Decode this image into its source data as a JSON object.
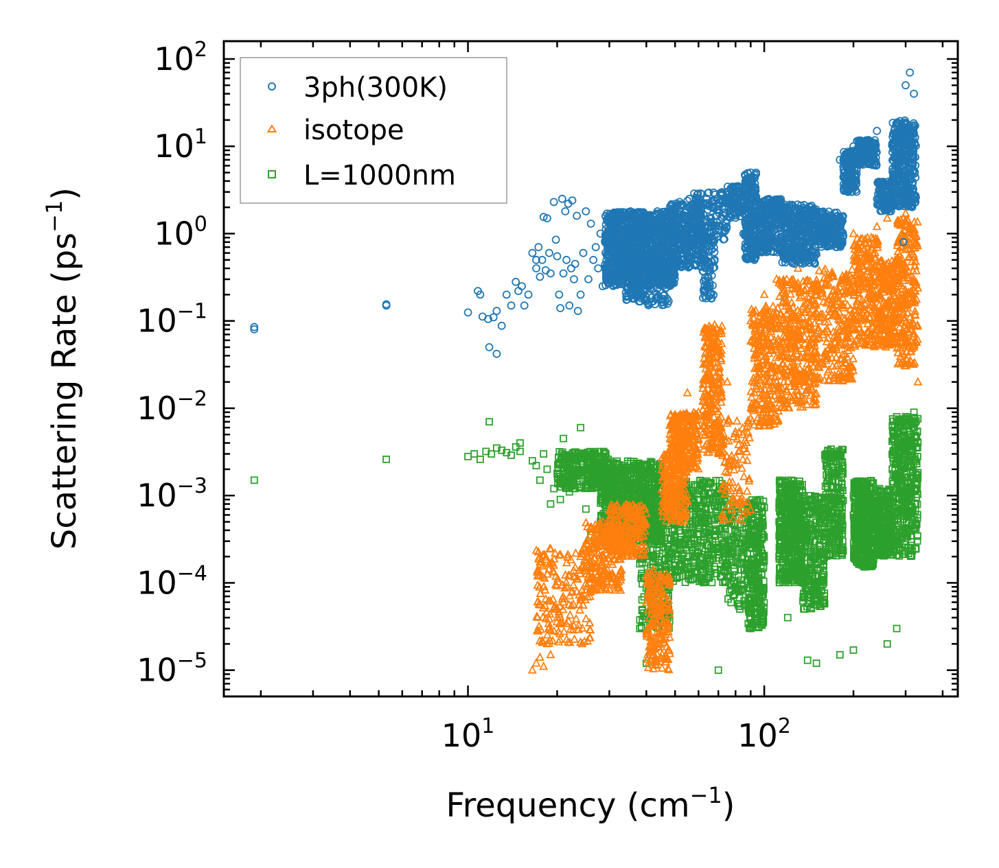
{
  "chart_data": {
    "type": "scatter",
    "xscale": "log",
    "yscale": "log",
    "xlim": [
      1.5,
      450
    ],
    "ylim": [
      5e-06,
      160
    ],
    "xlabel": {
      "base": "Frequency (cm",
      "sup": "−1",
      "close": ")"
    },
    "ylabel": {
      "base": "Scattering Rate (ps",
      "sup": "−1",
      "close": ")"
    },
    "x_ticks": [
      {
        "value": 10,
        "base": "10",
        "exp": "1"
      },
      {
        "value": 100,
        "base": "10",
        "exp": "2"
      }
    ],
    "y_ticks": [
      {
        "value": 100,
        "base": "10",
        "exp": "2"
      },
      {
        "value": 10,
        "base": "10",
        "exp": "1"
      },
      {
        "value": 1,
        "base": "10",
        "exp": "0"
      },
      {
        "value": 0.1,
        "base": "10",
        "exp": "−1"
      },
      {
        "value": 0.01,
        "base": "10",
        "exp": "−2"
      },
      {
        "value": 0.001,
        "base": "10",
        "exp": "−3"
      },
      {
        "value": 0.0001,
        "base": "10",
        "exp": "−4"
      },
      {
        "value": 1e-05,
        "base": "10",
        "exp": "−5"
      }
    ],
    "legend_position": "top-left",
    "series": [
      {
        "name": "3ph(300K)",
        "marker": "circle",
        "color": "#1f77b4",
        "points": [
          [
            1.9,
            0.085
          ],
          [
            1.9,
            0.08
          ],
          [
            5.3,
            0.155
          ],
          [
            5.3,
            0.15
          ],
          [
            10.0,
            0.125
          ],
          [
            10.8,
            0.22
          ],
          [
            11.0,
            0.2
          ],
          [
            11.2,
            0.112
          ],
          [
            11.7,
            0.105
          ],
          [
            11.8,
            0.05
          ],
          [
            12.2,
            0.11
          ],
          [
            12.5,
            0.13
          ],
          [
            12.5,
            0.042
          ],
          [
            13.0,
            0.088
          ],
          [
            13.5,
            0.2
          ],
          [
            14.0,
            0.15
          ],
          [
            14.5,
            0.28
          ],
          [
            14.8,
            0.22
          ],
          [
            15.2,
            0.25
          ],
          [
            15.5,
            0.15
          ],
          [
            16.0,
            0.2
          ],
          [
            16.5,
            0.6
          ],
          [
            17.0,
            0.5
          ],
          [
            17.0,
            0.4
          ],
          [
            17.3,
            0.7
          ],
          [
            17.5,
            0.32
          ],
          [
            17.8,
            0.5
          ],
          [
            18.0,
            1.55
          ],
          [
            18.3,
            0.38
          ],
          [
            18.5,
            1.5
          ],
          [
            18.8,
            0.6
          ],
          [
            19.0,
            0.35
          ],
          [
            19.5,
            2.3
          ],
          [
            19.8,
            0.85
          ],
          [
            20.0,
            0.55
          ],
          [
            20.3,
            0.2
          ],
          [
            20.5,
            0.14
          ],
          [
            20.8,
            2.5
          ],
          [
            21.0,
            0.35
          ],
          [
            21.3,
            1.8
          ],
          [
            21.5,
            0.5
          ],
          [
            21.8,
            2.2
          ],
          [
            22.0,
            0.15
          ],
          [
            22.3,
            0.4
          ],
          [
            22.5,
            2.4
          ],
          [
            22.8,
            0.3
          ],
          [
            23.0,
            0.45
          ],
          [
            23.3,
            1.6
          ],
          [
            23.5,
            0.13
          ],
          [
            24.0,
            0.2
          ],
          [
            24.5,
            0.6
          ],
          [
            25.0,
            1.8
          ],
          [
            25.5,
            0.3
          ],
          [
            26.0,
            1.3
          ],
          [
            26.5,
            0.5
          ],
          [
            27.0,
            0.7
          ],
          [
            27.5,
            0.4
          ],
          [
            28.0,
            1.0
          ],
          [
            28.5,
            0.25
          ],
          [
            29.0,
            0.8
          ],
          [
            85,
            1.0
          ],
          [
            90,
            5.0
          ],
          [
            92,
            3.5
          ],
          [
            120,
            0.6
          ],
          [
            130,
            1.2
          ],
          [
            180,
            7.0
          ],
          [
            200,
            10.0
          ],
          [
            240,
            15.0
          ],
          [
            280,
            18.0
          ],
          [
            300,
            50.0
          ],
          [
            310,
            70.0
          ],
          [
            320,
            40.0
          ],
          [
            295,
            0.8
          ]
        ],
        "clusters": [
          {
            "x": [
              29,
              50
            ],
            "y": [
              0.25,
              1.8
            ],
            "count": 1300
          },
          {
            "x": [
              34,
              48
            ],
            "y": [
              0.15,
              0.5
            ],
            "count": 150
          },
          {
            "x": [
              48,
              62
            ],
            "y": [
              0.4,
              2.3
            ],
            "count": 300
          },
          {
            "x": [
              55,
              75
            ],
            "y": [
              0.8,
              3.0
            ],
            "count": 150
          },
          {
            "x": [
              62,
              68
            ],
            "y": [
              0.18,
              1.0
            ],
            "count": 80
          },
          {
            "x": [
              75,
              86
            ],
            "y": [
              1.5,
              3.5
            ],
            "count": 100
          },
          {
            "x": [
              86,
              94
            ],
            "y": [
              0.5,
              5.0
            ],
            "count": 200
          },
          {
            "x": [
              94,
              115
            ],
            "y": [
              0.6,
              2.5
            ],
            "count": 250
          },
          {
            "x": [
              115,
              150
            ],
            "y": [
              0.45,
              2.2
            ],
            "count": 350
          },
          {
            "x": [
              150,
              185
            ],
            "y": [
              0.7,
              1.8
            ],
            "count": 200
          },
          {
            "x": [
              185,
              205
            ],
            "y": [
              3.0,
              9.0
            ],
            "count": 150
          },
          {
            "x": [
              205,
              240
            ],
            "y": [
              6.0,
              12.0
            ],
            "count": 150
          },
          {
            "x": [
              240,
              270
            ],
            "y": [
              1.8,
              4.0
            ],
            "count": 100
          },
          {
            "x": [
              270,
              325
            ],
            "y": [
              2.0,
              20.0
            ],
            "count": 350
          }
        ]
      },
      {
        "name": "isotope",
        "marker": "triangle",
        "color": "#ff7f0e",
        "points": [
          [
            16.5,
            1e-05
          ],
          [
            17.0,
            1.2e-05
          ],
          [
            17.5,
            1.4e-05
          ],
          [
            18.0,
            1.1e-05
          ],
          [
            18.5,
            2e-05
          ],
          [
            19.0,
            1.5e-05
          ],
          [
            19.5,
            2.8e-05
          ],
          [
            20.0,
            4e-05
          ],
          [
            20.5,
            3.5e-05
          ],
          [
            21.0,
            6e-05
          ],
          [
            21.5,
            9e-05
          ],
          [
            22.0,
            0.00012
          ],
          [
            22.5,
            8e-05
          ],
          [
            23.0,
            0.00015
          ],
          [
            23.5,
            0.00011
          ],
          [
            24.0,
            0.0002
          ],
          [
            24.5,
            0.00025
          ],
          [
            25.0,
            0.00018
          ],
          [
            55,
            0.015
          ],
          [
            60,
            0.009
          ],
          [
            65,
            0.05
          ],
          [
            68,
            0.09
          ],
          [
            75,
            0.02
          ],
          [
            90,
            0.1
          ],
          [
            100,
            0.2
          ],
          [
            110,
            0.3
          ],
          [
            130,
            0.4
          ],
          [
            150,
            0.6
          ],
          [
            180,
            0.8
          ],
          [
            200,
            1.0
          ],
          [
            220,
            0.5
          ],
          [
            240,
            1.2
          ],
          [
            260,
            1.5
          ],
          [
            300,
            1.7
          ],
          [
            310,
            0.9
          ],
          [
            320,
            0.05
          ],
          [
            330,
            0.02
          ]
        ],
        "clusters": [
          {
            "x": [
              17,
              26
            ],
            "y": [
              2e-05,
              0.00025
            ],
            "count": 180
          },
          {
            "x": [
              25,
              33
            ],
            "y": [
              8e-05,
              0.0005
            ],
            "count": 220
          },
          {
            "x": [
              30,
              40
            ],
            "y": [
              0.0002,
              0.0008
            ],
            "count": 200
          },
          {
            "x": [
              40,
              48
            ],
            "y": [
              1e-05,
              0.00015
            ],
            "count": 200
          },
          {
            "x": [
              45,
              55
            ],
            "y": [
              0.0005,
              0.003
            ],
            "count": 200
          },
          {
            "x": [
              48,
              60
            ],
            "y": [
              0.002,
              0.009
            ],
            "count": 250
          },
          {
            "x": [
              62,
              72
            ],
            "y": [
              0.003,
              0.09
            ],
            "count": 250
          },
          {
            "x": [
              72,
              90
            ],
            "y": [
              0.0005,
              0.008
            ],
            "count": 100
          },
          {
            "x": [
              90,
              112
            ],
            "y": [
              0.006,
              0.15
            ],
            "count": 250
          },
          {
            "x": [
              112,
              150
            ],
            "y": [
              0.01,
              0.3
            ],
            "count": 350
          },
          {
            "x": [
              150,
              200
            ],
            "y": [
              0.02,
              0.4
            ],
            "count": 250
          },
          {
            "x": [
              200,
              245
            ],
            "y": [
              0.05,
              0.9
            ],
            "count": 250
          },
          {
            "x": [
              245,
              280
            ],
            "y": [
              0.05,
              0.5
            ],
            "count": 200
          },
          {
            "x": [
              280,
              330
            ],
            "y": [
              0.03,
              1.5
            ],
            "count": 250
          }
        ]
      },
      {
        "name": "L=1000nm",
        "marker": "square",
        "color": "#2ca02c",
        "points": [
          [
            1.9,
            0.0015
          ],
          [
            5.3,
            0.0026
          ],
          [
            10.0,
            0.0028
          ],
          [
            10.5,
            0.003
          ],
          [
            11.0,
            0.0026
          ],
          [
            11.5,
            0.0032
          ],
          [
            11.8,
            0.007
          ],
          [
            12.0,
            0.003
          ],
          [
            12.5,
            0.0035
          ],
          [
            13.0,
            0.0033
          ],
          [
            13.5,
            0.0031
          ],
          [
            14.0,
            0.0029
          ],
          [
            14.5,
            0.0036
          ],
          [
            15.0,
            0.0032
          ],
          [
            15.0,
            0.004
          ],
          [
            16.5,
            0.0025
          ],
          [
            17.0,
            0.0022
          ],
          [
            17.5,
            0.0015
          ],
          [
            18.0,
            0.003
          ],
          [
            18.5,
            0.002
          ],
          [
            19.0,
            0.0008
          ],
          [
            19.5,
            0.0012
          ],
          [
            20.0,
            0.0018
          ],
          [
            20.5,
            0.0009
          ],
          [
            21.0,
            0.0045
          ],
          [
            22.0,
            0.0011
          ],
          [
            22.5,
            0.0023
          ],
          [
            23.0,
            0.0025
          ],
          [
            24.0,
            0.006
          ],
          [
            25.0,
            0.0007
          ],
          [
            26.0,
            0.00035
          ],
          [
            27.0,
            0.0004
          ],
          [
            28.0,
            0.0005
          ],
          [
            38,
            3e-05
          ],
          [
            40,
            1.2e-05
          ],
          [
            45,
            4e-05
          ],
          [
            70,
            1e-05
          ],
          [
            90,
            3e-05
          ],
          [
            120,
            4e-05
          ],
          [
            140,
            1.3e-05
          ],
          [
            150,
            1.2e-05
          ],
          [
            180,
            1.5e-05
          ],
          [
            200,
            1.7e-05
          ],
          [
            260,
            2e-05
          ],
          [
            280,
            3e-05
          ],
          [
            300,
            0.008
          ],
          [
            310,
            0.005
          ],
          [
            320,
            0.009
          ]
        ],
        "clusters": [
          {
            "x": [
              20,
              30
            ],
            "y": [
              0.0012,
              0.0032
            ],
            "count": 280
          },
          {
            "x": [
              28,
              45
            ],
            "y": [
              0.0003,
              0.0025
            ],
            "count": 750
          },
          {
            "x": [
              38,
              48
            ],
            "y": [
              3e-05,
              0.0012
            ],
            "count": 300
          },
          {
            "x": [
              48,
              75
            ],
            "y": [
              0.0001,
              0.0015
            ],
            "count": 450
          },
          {
            "x": [
              75,
              88
            ],
            "y": [
              5e-05,
              0.0008
            ],
            "count": 120
          },
          {
            "x": [
              88,
              100
            ],
            "y": [
              3e-05,
              0.0009
            ],
            "count": 260
          },
          {
            "x": [
              112,
              135
            ],
            "y": [
              0.0001,
              0.0015
            ],
            "count": 420
          },
          {
            "x": [
              135,
              160
            ],
            "y": [
              5e-05,
              0.001
            ],
            "count": 250
          },
          {
            "x": [
              160,
              185
            ],
            "y": [
              0.0002,
              0.0035
            ],
            "count": 220
          },
          {
            "x": [
              200,
              235
            ],
            "y": [
              0.00015,
              0.0015
            ],
            "count": 380
          },
          {
            "x": [
              235,
              270
            ],
            "y": [
              0.0002,
              0.0012
            ],
            "count": 250
          },
          {
            "x": [
              270,
              330
            ],
            "y": [
              0.0002,
              0.008
            ],
            "count": 400
          }
        ]
      }
    ]
  }
}
